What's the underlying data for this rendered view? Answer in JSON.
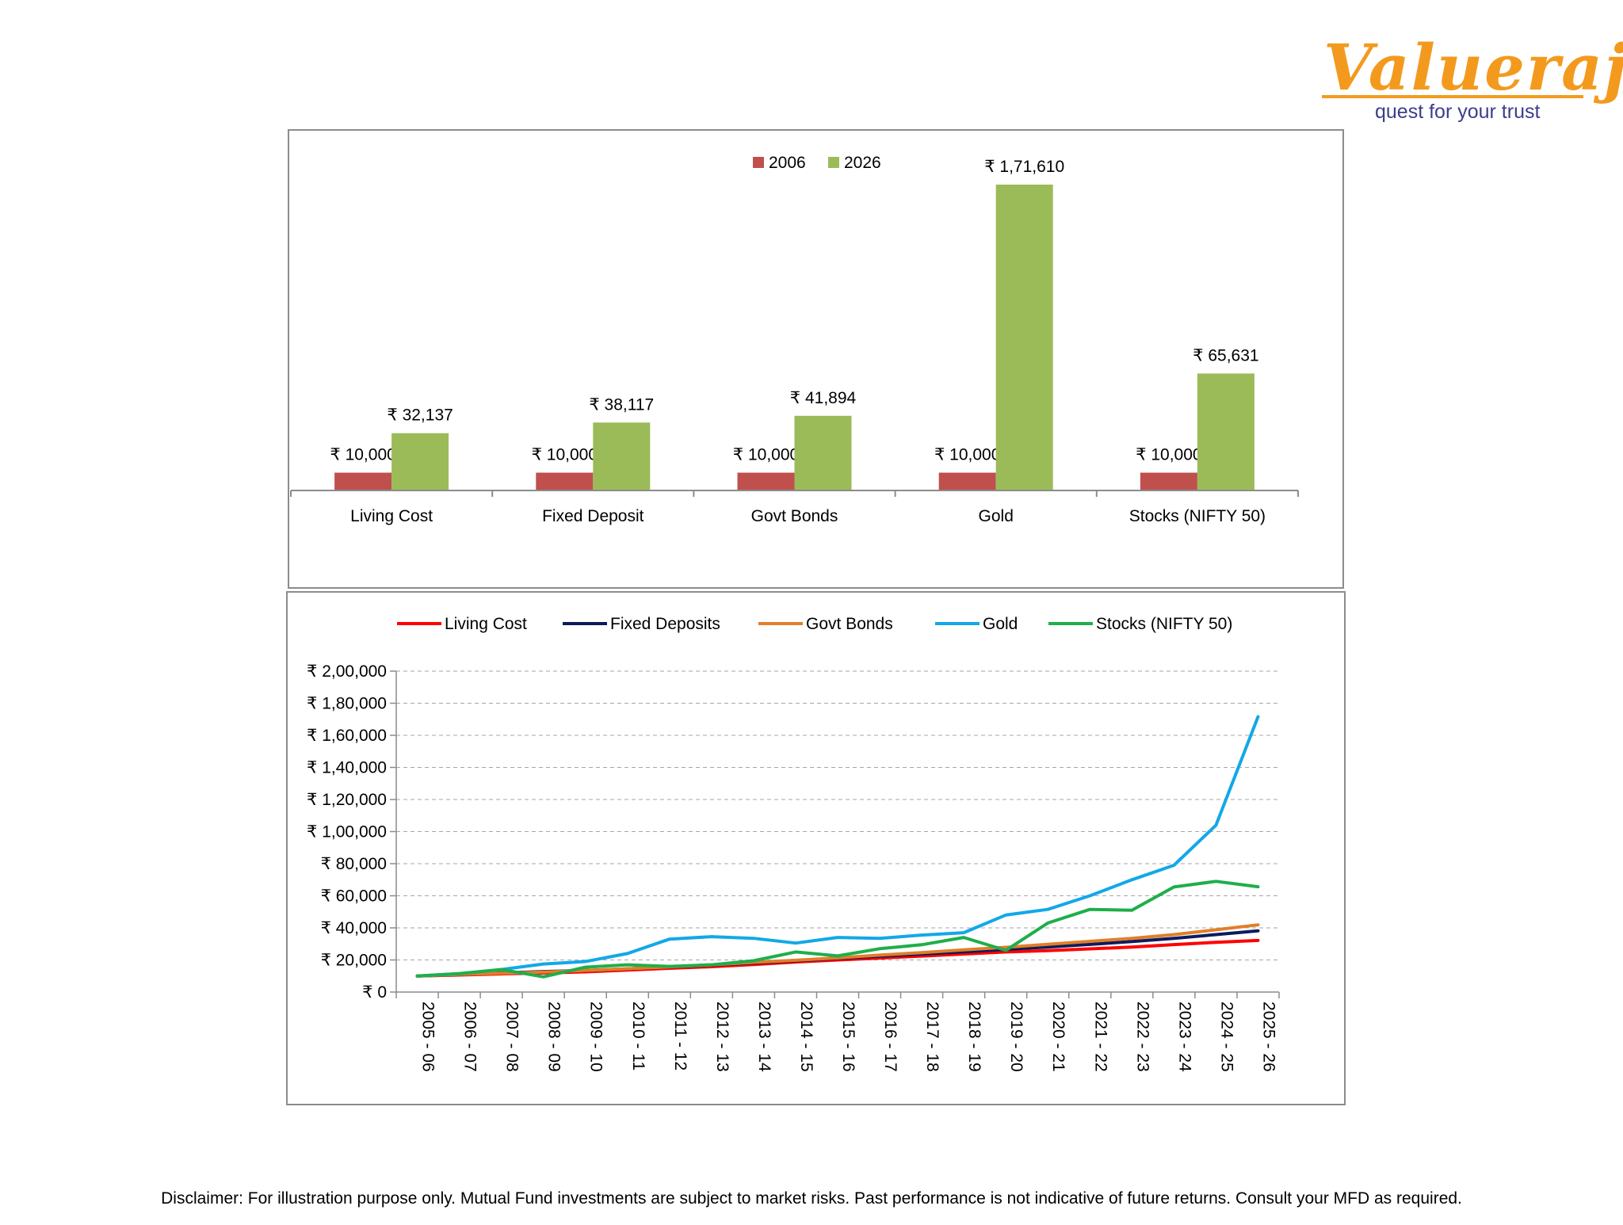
{
  "brand": {
    "name": "Valueraj",
    "tagline": "quest for your trust",
    "color": "#F39A1E",
    "tagline_color": "#3A3E8C"
  },
  "chart_data": [
    {
      "type": "bar",
      "categories": [
        "Living Cost",
        "Fixed Deposit",
        "Govt Bonds",
        "Gold",
        "Stocks (NIFTY 50)"
      ],
      "series": [
        {
          "name": "2006",
          "color": "#C0504D",
          "values": [
            10000,
            10000,
            10000,
            10000,
            10000
          ],
          "labels": [
            "₹ 10,000",
            "₹ 10,000",
            "₹ 10,000",
            "₹ 10,000",
            "₹ 10,000"
          ]
        },
        {
          "name": "2026",
          "color": "#9BBB59",
          "values": [
            32137,
            38117,
            41894,
            171610,
            65631
          ],
          "labels": [
            "₹ 32,137",
            "₹ 38,117",
            "₹ 41,894",
            "₹ 1,71,610",
            "₹ 65,631"
          ]
        }
      ],
      "legend": "top-center",
      "ylim": [
        0,
        171610
      ]
    },
    {
      "type": "line",
      "x": [
        "2005 - 06",
        "2006 - 07",
        "2007 - 08",
        "2008 - 09",
        "2009 - 10",
        "2010 - 11",
        "2011 - 12",
        "2012 - 13",
        "2013 - 14",
        "2014 - 15",
        "2015 - 16",
        "2016 - 17",
        "2017 - 18",
        "2018 - 19",
        "2019 - 20",
        "2020 - 21",
        "2021 - 22",
        "2022 - 23",
        "2023 - 24",
        "2024 - 25",
        "2025 - 26"
      ],
      "ylim": [
        0,
        200000
      ],
      "yticks": [
        0,
        20000,
        40000,
        60000,
        80000,
        100000,
        120000,
        140000,
        160000,
        180000,
        200000
      ],
      "ytick_labels": [
        "₹ 0",
        "₹ 20,000",
        "₹ 40,000",
        "₹ 60,000",
        "₹ 80,000",
        "₹ 1,00,000",
        "₹ 1,20,000",
        "₹ 1,40,000",
        "₹ 1,60,000",
        "₹ 1,80,000",
        "₹ 2,00,000"
      ],
      "grid": "horizontal-dashed",
      "legend": "top-center",
      "series": [
        {
          "name": "Living Cost",
          "color": "#FF0000",
          "values": [
            10000,
            10600,
            11300,
            11900,
            12600,
            13700,
            14800,
            15800,
            17200,
            18700,
            20000,
            21200,
            22400,
            23700,
            25000,
            25800,
            26900,
            28000,
            29600,
            31000,
            32137
          ]
        },
        {
          "name": "Fixed Deposits",
          "color": "#0D1B5C",
          "values": [
            10000,
            10900,
            11900,
            12800,
            13500,
            14400,
            15600,
            16800,
            18100,
            19500,
            21000,
            22300,
            23700,
            25100,
            26600,
            28000,
            29700,
            31500,
            33500,
            35800,
            38117
          ]
        },
        {
          "name": "Govt Bonds",
          "color": "#E07F2A",
          "values": [
            10000,
            11000,
            11700,
            12500,
            13500,
            14500,
            15700,
            17000,
            18500,
            19800,
            21300,
            23000,
            24600,
            26300,
            27900,
            29800,
            31600,
            33500,
            35800,
            38800,
            41894
          ]
        },
        {
          "name": "Gold",
          "color": "#12A8E8",
          "values": [
            10000,
            11500,
            14000,
            17500,
            19000,
            24000,
            33000,
            34500,
            33500,
            30500,
            34000,
            33500,
            35500,
            37000,
            48000,
            51500,
            60000,
            70000,
            79000,
            104000,
            171610
          ]
        },
        {
          "name": "Stocks (NIFTY 50)",
          "color": "#1FAE4B",
          "values": [
            10000,
            11500,
            14000,
            9500,
            15500,
            17000,
            16000,
            17000,
            19500,
            25000,
            22500,
            27000,
            29500,
            34000,
            26000,
            43000,
            51500,
            51000,
            65500,
            69000,
            65631
          ]
        }
      ]
    }
  ],
  "disclaimer": "Disclaimer: For illustration purpose only. Mutual Fund investments are subject to market risks. Past performance is not indicative of future returns. Consult your MFD as required."
}
